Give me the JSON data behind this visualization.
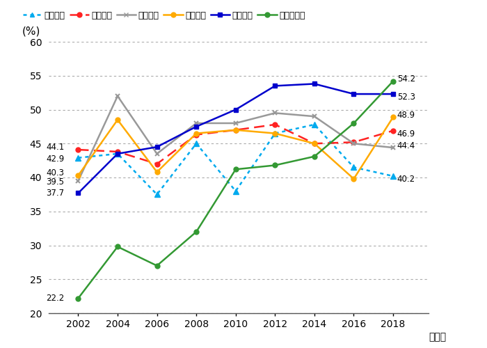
{
  "years": [
    2002,
    2004,
    2006,
    2008,
    2010,
    2012,
    2014,
    2016,
    2018
  ],
  "series": {
    "20": [
      42.9,
      43.5,
      37.5,
      45.0,
      38.0,
      46.5,
      47.8,
      41.5,
      40.2
    ],
    "30": [
      44.1,
      43.8,
      42.0,
      46.3,
      47.0,
      47.8,
      45.0,
      45.2,
      46.9
    ],
    "40": [
      39.5,
      52.0,
      43.5,
      48.0,
      48.0,
      49.5,
      49.0,
      45.0,
      44.4
    ],
    "50": [
      40.3,
      48.5,
      40.8,
      46.5,
      47.0,
      46.5,
      45.0,
      39.8,
      48.9
    ],
    "60": [
      37.7,
      43.5,
      44.5,
      47.5,
      50.0,
      53.5,
      53.8,
      52.3,
      52.3
    ],
    "70": [
      22.2,
      29.8,
      27.0,
      32.0,
      41.2,
      41.8,
      43.1,
      48.0,
      54.2
    ]
  },
  "colors": {
    "20": "#00AAEE",
    "30": "#FF2222",
    "40": "#999999",
    "50": "#FFAA00",
    "60": "#0000CC",
    "70": "#339933"
  },
  "linestyles": {
    "20": "dotted",
    "30": "dashed",
    "40": "solid",
    "50": "solid",
    "60": "solid",
    "70": "solid"
  },
  "markers": {
    "20": "^",
    "30": "o",
    "40": "x",
    "50": "o",
    "60": "s",
    "70": "o"
  },
  "legend_labels": {
    "20": "２０歳代",
    "30": "３０歳代",
    "40": "４０歳代",
    "50": "５０歳代",
    "60": "６０歳代",
    "70": "７０歳以上"
  },
  "start_labels": [
    {
      "text": "44.1",
      "y": 44.1,
      "yoff": 0.4
    },
    {
      "text": "42.9",
      "y": 42.9,
      "yoff": -0.2
    },
    {
      "text": "40.3",
      "y": 40.3,
      "yoff": 0.4
    },
    {
      "text": "39.5",
      "y": 39.5,
      "yoff": -0.2
    },
    {
      "text": "37.7",
      "y": 37.7,
      "yoff": 0.0
    },
    {
      "text": "22.2",
      "y": 22.2,
      "yoff": 0.0
    }
  ],
  "end_labels": [
    {
      "text": "54.2",
      "y": 54.2,
      "yoff": 0.3
    },
    {
      "text": "52.3",
      "y": 52.3,
      "yoff": -0.5
    },
    {
      "text": "48.9",
      "y": 48.9,
      "yoff": 0.3
    },
    {
      "text": "46.9",
      "y": 46.9,
      "yoff": -0.5
    },
    {
      "text": "44.4",
      "y": 44.4,
      "yoff": 0.3
    },
    {
      "text": "40.2",
      "y": 40.2,
      "yoff": -0.5
    }
  ],
  "ylim": [
    20,
    60
  ],
  "yticks": [
    20,
    25,
    30,
    35,
    40,
    45,
    50,
    55,
    60
  ],
  "ylabel": "(%)",
  "xlabel": "（年）",
  "xlim_left": 2000.5,
  "xlim_right": 2019.8,
  "background_color": "#FFFFFF",
  "grid_color": "#AAAAAA"
}
